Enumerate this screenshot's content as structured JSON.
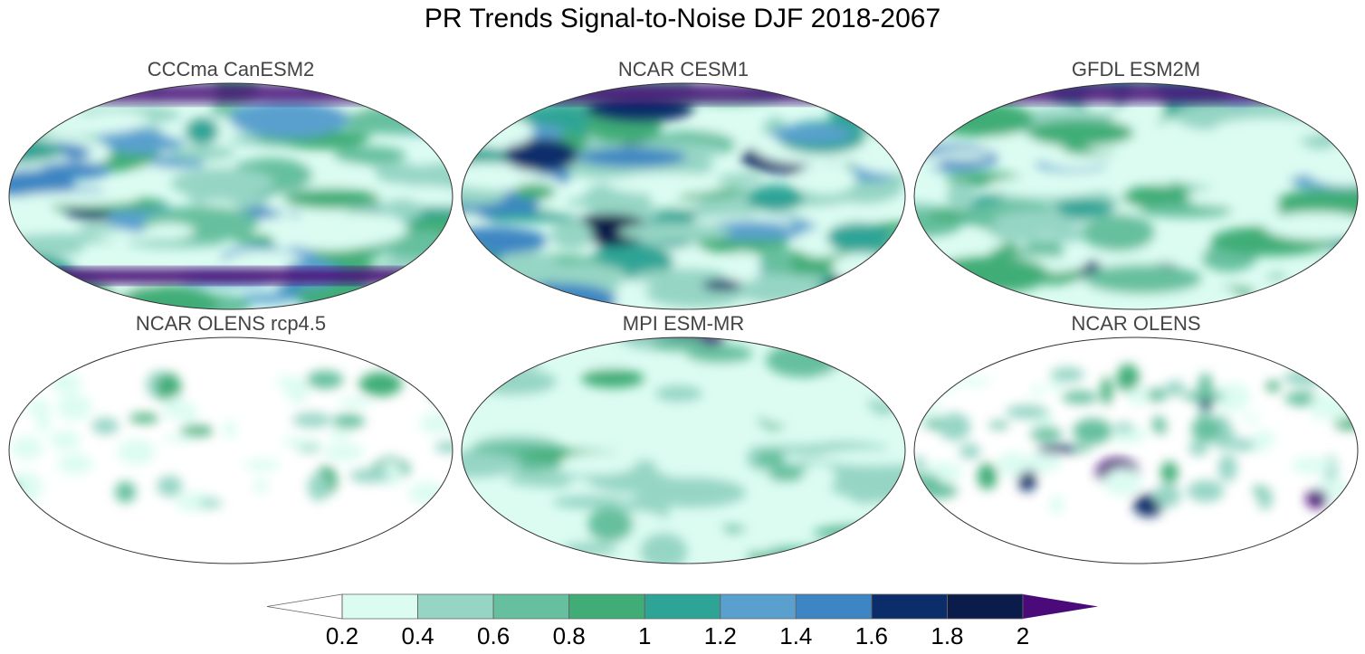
{
  "title": "PR Trends Signal-to-Noise DJF 2018-2067",
  "panels": [
    {
      "title": "CCCma CanESM2"
    },
    {
      "title": "NCAR CESM1"
    },
    {
      "title": "GFDL ESM2M"
    },
    {
      "title": "NCAR OLENS rcp4.5"
    },
    {
      "title": "MPI ESM-MR"
    },
    {
      "title": "NCAR OLENS"
    }
  ],
  "colorbar": {
    "ticks": [
      0.2,
      0.4,
      0.6,
      0.8,
      1,
      1.2,
      1.4,
      1.6,
      1.8,
      2
    ],
    "colors": [
      "#ffffff",
      "#dcfcf2",
      "#96d5c4",
      "#66c09f",
      "#40ad77",
      "#2ea496",
      "#5aa0cf",
      "#3d86c3",
      "#0b2e6b",
      "#0b1b4a",
      "#4b0a79"
    ]
  }
}
